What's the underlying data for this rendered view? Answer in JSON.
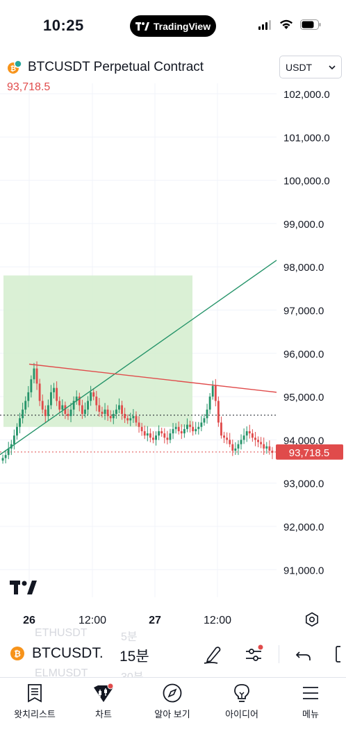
{
  "status": {
    "time": "10:25",
    "pill_label": "TradingView"
  },
  "header": {
    "symbol_title": "BTCUSDT Perpetual Contract",
    "last_price": "93,718.5",
    "currency": "USDT"
  },
  "chart_data": {
    "type": "candlestick",
    "y_ticks": [
      "102,000.0",
      "101,000.0",
      "100,000.0",
      "99,000.0",
      "98,000.0",
      "97,000.0",
      "96,000.0",
      "95,000.0",
      "94,000.0",
      "93,000.0",
      "92,000.0",
      "91,000.0"
    ],
    "y_tick_values": [
      102000,
      101000,
      100000,
      99000,
      98000,
      97000,
      96000,
      95000,
      94000,
      93000,
      92000,
      91000
    ],
    "x_ticks": [
      "26",
      "12:00",
      "27",
      "12:00"
    ],
    "last_price_label": "93,718.5",
    "last_price_value": 93718.5,
    "previous_close_value": 94570,
    "trend_up": {
      "from": 93900,
      "to": 98150,
      "color": "#26946a"
    },
    "trend_down": {
      "from": 95750,
      "to": 95100,
      "color": "#e04b4b"
    },
    "range_box": {
      "top": 97800,
      "bottom": 94300,
      "color": "#d4edce"
    },
    "candles_ohlc_sample": [
      93580,
      93650,
      93800,
      93900,
      94100,
      94300,
      94500,
      94700,
      94900,
      95100,
      95400,
      95650,
      95300,
      94900,
      94700,
      94550,
      94800,
      95100,
      95200,
      94900,
      94700,
      94800,
      94600,
      94550,
      94700,
      94900,
      95000,
      94800,
      94600,
      94700,
      94900,
      95100,
      95000,
      94800,
      94650,
      94600,
      94700,
      94550,
      94500,
      94600,
      94700,
      94800,
      94600,
      94500,
      94450,
      94500,
      94550,
      94400,
      94300,
      94200,
      94100,
      94150,
      94050,
      94000,
      94100,
      94200,
      94150,
      94050,
      94000,
      94150,
      94250,
      94300,
      94200,
      94150,
      94250,
      94350,
      94300,
      94200,
      94250,
      94300,
      94400,
      94500,
      94700,
      95000,
      95250,
      94900,
      94400,
      94100,
      94050,
      94000,
      93900,
      93750,
      93800,
      93900,
      94000,
      94100,
      94200,
      94150,
      94050,
      94000,
      93950,
      93900,
      93800,
      93850,
      93750,
      93700
    ]
  },
  "symbol_bar": {
    "ghost_top_symbol": "ETHUSDT",
    "ghost_top_interval": "5분",
    "symbol": "BTCUSDT.",
    "interval": "15분",
    "ghost_bottom_symbol": "ELMUSDT",
    "ghost_bottom_interval": "30분"
  },
  "nav": {
    "items": [
      {
        "label": "왓치리스트",
        "icon": "watchlist-icon"
      },
      {
        "label": "차트",
        "icon": "chart-icon"
      },
      {
        "label": "알아 보기",
        "icon": "compass-icon"
      },
      {
        "label": "아이디어",
        "icon": "lightbulb-icon"
      },
      {
        "label": "메뉴",
        "icon": "menu-icon"
      }
    ]
  },
  "colors": {
    "up": "#26946a",
    "down": "#e04b4b",
    "accent_badge": "#e04b4b",
    "btc_orange": "#f7931a"
  }
}
